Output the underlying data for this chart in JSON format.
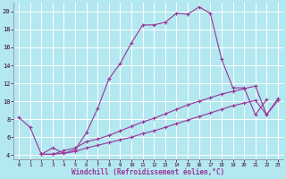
{
  "xlabel": "Windchill (Refroidissement éolien,°C)",
  "bg_color": "#b3e8f0",
  "grid_color": "#ffffff",
  "line_color": "#993399",
  "xlim": [
    -0.5,
    23.5
  ],
  "ylim": [
    3.5,
    21.0
  ],
  "xticks": [
    0,
    1,
    2,
    3,
    4,
    5,
    6,
    7,
    8,
    9,
    10,
    11,
    12,
    13,
    14,
    15,
    16,
    17,
    18,
    19,
    20,
    21,
    22,
    23
  ],
  "yticks": [
    4,
    6,
    8,
    10,
    12,
    14,
    16,
    18,
    20
  ],
  "line1_x": [
    0,
    1,
    2,
    3,
    4,
    5,
    6,
    7,
    8,
    9,
    10,
    11,
    12,
    13,
    14,
    15,
    16,
    17,
    18,
    19,
    20,
    21,
    22
  ],
  "line1_y": [
    8.2,
    7.1,
    4.1,
    4.8,
    4.2,
    4.6,
    6.5,
    9.2,
    12.5,
    14.2,
    16.5,
    18.5,
    18.5,
    18.8,
    19.8,
    19.7,
    20.5,
    19.8,
    14.7,
    11.5,
    11.5,
    8.5,
    10.2
  ],
  "line2_x": [
    2,
    3,
    4,
    5,
    6,
    7,
    8,
    9,
    10,
    11,
    12,
    13,
    14,
    15,
    16,
    17,
    18,
    19,
    20,
    21,
    22,
    23
  ],
  "line2_y": [
    4.1,
    4.1,
    4.5,
    4.8,
    5.5,
    5.8,
    6.2,
    6.7,
    7.2,
    7.7,
    8.1,
    8.6,
    9.1,
    9.6,
    10.0,
    10.4,
    10.8,
    11.1,
    11.4,
    11.7,
    8.5,
    10.3
  ],
  "line3_x": [
    2,
    3,
    4,
    5,
    6,
    7,
    8,
    9,
    10,
    11,
    12,
    13,
    14,
    15,
    16,
    17,
    18,
    19,
    20,
    21,
    22,
    23
  ],
  "line3_y": [
    4.1,
    4.1,
    4.2,
    4.4,
    4.8,
    5.1,
    5.4,
    5.7,
    6.0,
    6.4,
    6.7,
    7.1,
    7.5,
    7.9,
    8.3,
    8.7,
    9.1,
    9.5,
    9.8,
    10.1,
    8.5,
    10.1
  ]
}
